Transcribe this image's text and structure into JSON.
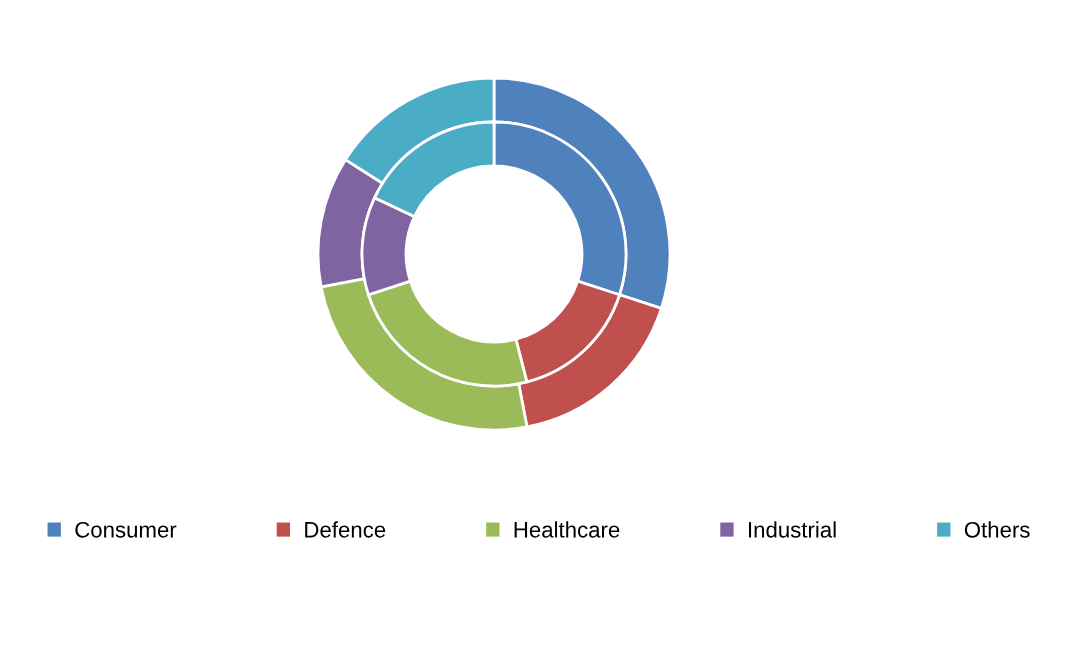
{
  "chart_data": {
    "type": "donut",
    "categories": [
      "Consumer",
      "Defence",
      "Healthcare",
      "Industrial",
      "Others"
    ],
    "colors": [
      "#4f81bd",
      "#c0504d",
      "#9bbb59",
      "#8064a2",
      "#4bacc6"
    ],
    "series": [
      {
        "values": [
          30,
          17,
          25,
          12,
          16
        ]
      },
      {
        "values": [
          30,
          16,
          24,
          12,
          18
        ]
      }
    ],
    "legend": "bottom"
  }
}
